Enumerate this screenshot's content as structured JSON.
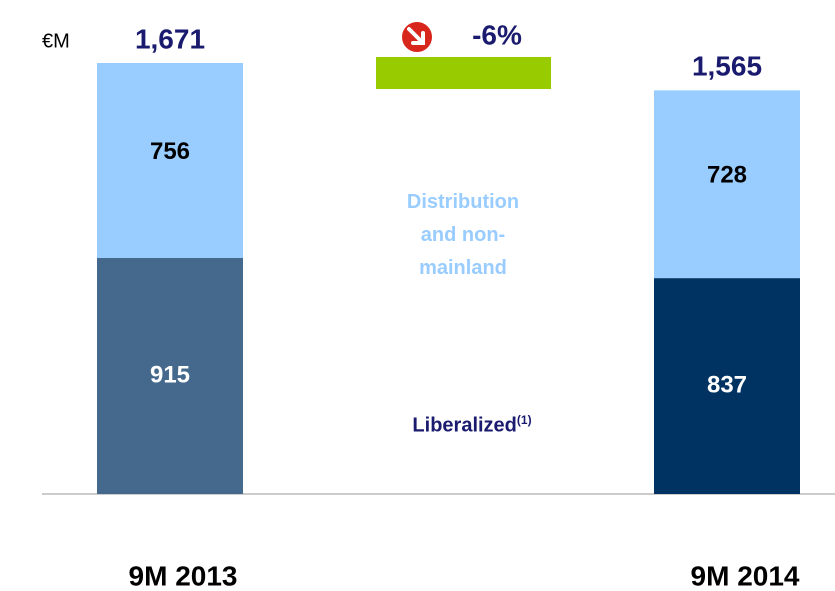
{
  "chart_data": {
    "type": "stacked_bar",
    "unit": "€M",
    "categories": [
      "9M 2013",
      "9M 2014"
    ],
    "series": [
      {
        "name": "Liberalized",
        "footnote_marker": "(1)",
        "colors": [
          "#45698c",
          "#003262"
        ],
        "label_color": "#ffffff",
        "values": [
          915,
          837
        ]
      },
      {
        "name": "Distribution and non-mainland",
        "colors": [
          "#99ccff",
          "#99ccff"
        ],
        "label_color": "#000000",
        "values": [
          756,
          728
        ]
      }
    ],
    "totals": {
      "values": [
        1671,
        1565
      ],
      "value_labels": [
        "1,671",
        "1,565"
      ]
    },
    "change": {
      "value": -6,
      "value_label": "-6%",
      "color": "#99cc00"
    }
  }
}
